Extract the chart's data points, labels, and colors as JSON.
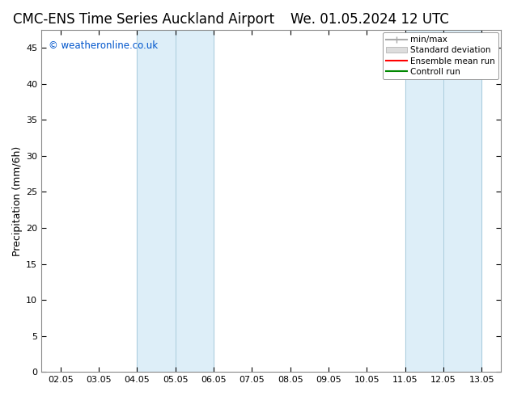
{
  "title_left": "CMC-ENS Time Series Auckland Airport",
  "title_right": "We. 01.05.2024 12 UTC",
  "ylabel": "Precipitation (mm/6h)",
  "xtick_labels": [
    "02.05",
    "03.05",
    "04.05",
    "05.05",
    "06.05",
    "07.05",
    "08.05",
    "09.05",
    "10.05",
    "11.05",
    "12.05",
    "13.05"
  ],
  "yticks": [
    0,
    5,
    10,
    15,
    20,
    25,
    30,
    35,
    40,
    45
  ],
  "ylim": [
    0,
    47.5
  ],
  "shaded_regions": [
    {
      "xstart": 2,
      "xend": 3,
      "color": "#ddeef8"
    },
    {
      "xstart": 3,
      "xend": 4,
      "color": "#ddeef8"
    },
    {
      "xstart": 9,
      "xend": 10,
      "color": "#ddeef8"
    },
    {
      "xstart": 10,
      "xend": 11,
      "color": "#ddeef8"
    }
  ],
  "shaded_borders": [
    2,
    3,
    4,
    9,
    10,
    11
  ],
  "legend_entries": [
    {
      "label": "min/max",
      "color": "#aaaaaa"
    },
    {
      "label": "Standard deviation",
      "color": "#cccccc"
    },
    {
      "label": "Ensemble mean run",
      "color": "#ff0000"
    },
    {
      "label": "Controll run",
      "color": "#008800"
    }
  ],
  "watermark_text": "© weatheronline.co.uk",
  "watermark_color": "#0055cc",
  "background_color": "#ffffff",
  "title_fontsize": 12,
  "tick_fontsize": 8,
  "ylabel_fontsize": 9,
  "border_color": "#aaaaaa",
  "shade_border_color": "#aaccdd"
}
